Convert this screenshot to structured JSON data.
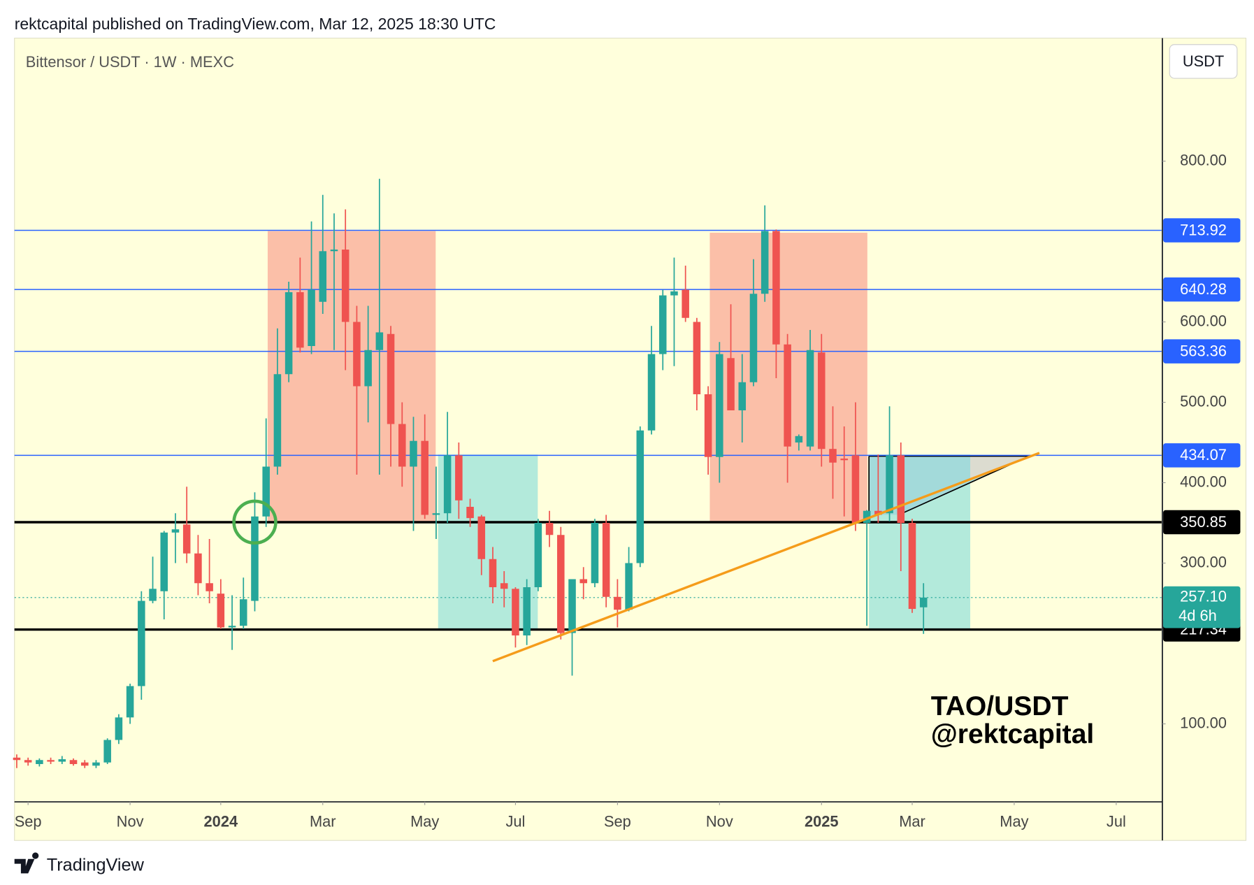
{
  "chart_data": {
    "type": "candlestick",
    "header": "rektcapital published on TradingView.com, Mar 12, 2025 18:30 UTC",
    "title": "Bittensor / USDT · 1W · MEXC",
    "currency": "USDT",
    "watermark": [
      "TAO/USDT",
      "@rektcapital"
    ],
    "brand": "TradingView",
    "up_color": "#26a69a",
    "down_color": "#ef5350",
    "open": [
      58,
      55,
      50,
      55,
      53,
      55,
      52,
      48,
      52,
      80,
      108,
      147,
      253,
      265,
      338,
      348,
      312,
      275,
      262,
      220,
      222,
      253,
      358,
      420,
      535,
      637,
      570,
      625,
      688,
      690,
      600,
      520,
      565,
      585,
      473,
      420,
      452,
      360,
      362,
      434,
      370,
      358,
      305,
      275,
      268,
      210,
      270,
      350,
      335,
      213,
      280,
      275,
      350,
      258,
      242,
      300,
      465,
      560,
      633,
      640,
      600,
      510,
      432,
      555,
      490,
      525,
      635,
      713,
      572,
      450,
      445,
      562,
      442,
      430,
      434,
      350,
      365,
      362,
      434,
      350,
      245
    ],
    "high": [
      62,
      58,
      57,
      58,
      60,
      57,
      55,
      55,
      82,
      112,
      150,
      265,
      308,
      340,
      362,
      395,
      335,
      330,
      280,
      260,
      282,
      388,
      480,
      592,
      650,
      680,
      725,
      758,
      735,
      740,
      620,
      620,
      778,
      595,
      500,
      482,
      485,
      420,
      488,
      450,
      380,
      360,
      320,
      290,
      270,
      280,
      355,
      365,
      345,
      280,
      295,
      355,
      360,
      280,
      320,
      470,
      595,
      640,
      680,
      670,
      605,
      520,
      575,
      622,
      560,
      678,
      745,
      715,
      585,
      460,
      590,
      585,
      495,
      470,
      500,
      366,
      435,
      495,
      450,
      355,
      275
    ],
    "low": [
      45,
      48,
      47,
      50,
      50,
      48,
      45,
      45,
      50,
      75,
      100,
      130,
      250,
      230,
      300,
      300,
      260,
      250,
      218,
      192,
      218,
      240,
      345,
      410,
      525,
      562,
      560,
      610,
      565,
      540,
      410,
      475,
      410,
      420,
      395,
      340,
      355,
      330,
      350,
      355,
      345,
      285,
      250,
      245,
      195,
      198,
      265,
      320,
      205,
      160,
      255,
      270,
      245,
      220,
      240,
      295,
      460,
      540,
      545,
      600,
      490,
      410,
      400,
      490,
      450,
      520,
      625,
      530,
      400,
      440,
      440,
      420,
      380,
      358,
      340,
      222,
      350,
      352,
      290,
      238,
      212
    ],
    "close": [
      55,
      52,
      55,
      53,
      56,
      50,
      48,
      52,
      80,
      108,
      147,
      253,
      268,
      338,
      342,
      312,
      275,
      265,
      220,
      222,
      255,
      358,
      420,
      535,
      637,
      568,
      640,
      688,
      690,
      600,
      520,
      565,
      587,
      473,
      420,
      452,
      360,
      362,
      434,
      378,
      356,
      305,
      270,
      268,
      210,
      270,
      350,
      335,
      213,
      280,
      275,
      350,
      258,
      242,
      300,
      465,
      560,
      633,
      638,
      605,
      510,
      432,
      560,
      490,
      525,
      635,
      713,
      572,
      445,
      458,
      565,
      442,
      425,
      428,
      350,
      365,
      360,
      434,
      350,
      243,
      257.1
    ],
    "xlim": [
      -0.2,
      101
    ],
    "xticks": [
      {
        "value": 1,
        "label": "Sep"
      },
      {
        "value": 10,
        "label": "Nov"
      },
      {
        "value": 18,
        "label": "2024",
        "bold": true
      },
      {
        "value": 27,
        "label": "Mar"
      },
      {
        "value": 36,
        "label": "May"
      },
      {
        "value": 44,
        "label": "Jul"
      },
      {
        "value": 53,
        "label": "Sep"
      },
      {
        "value": 62,
        "label": "Nov"
      },
      {
        "value": 71,
        "label": "2025",
        "bold": true
      },
      {
        "value": 79,
        "label": "Mar"
      },
      {
        "value": 88,
        "label": "May"
      },
      {
        "value": 97,
        "label": "Jul"
      }
    ],
    "ylim": [
      3,
      953
    ],
    "yticks": [
      {
        "value": 100,
        "label": "100.00"
      },
      {
        "value": 300,
        "label": "300.00"
      },
      {
        "value": 400,
        "label": "400.00"
      },
      {
        "value": 500,
        "label": "500.00"
      },
      {
        "value": 600,
        "label": "600.00"
      },
      {
        "value": 800,
        "label": "800.00"
      }
    ],
    "levels": [
      {
        "value": 713.92,
        "color": "#2962ff"
      },
      {
        "value": 640.28,
        "color": "#2962ff"
      },
      {
        "value": 563.36,
        "color": "#2962ff"
      },
      {
        "value": 434.07,
        "color": "#2962ff"
      },
      {
        "value": 350.85,
        "color": "#000000"
      },
      {
        "value": 217.34,
        "color": "#000000"
      }
    ],
    "last": {
      "value": 257.1,
      "label": "257.10",
      "countdown": "4d 6h",
      "color": "#26a69a"
    }
  }
}
